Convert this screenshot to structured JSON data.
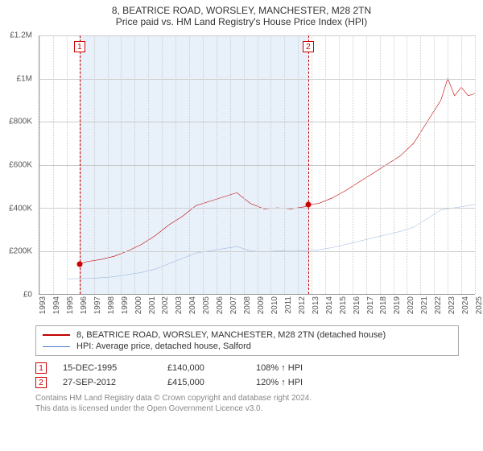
{
  "title": {
    "main": "8, BEATRICE ROAD, WORSLEY, MANCHESTER, M28 2TN",
    "sub": "Price paid vs. HM Land Registry's House Price Index (HPI)",
    "fontsize": 12
  },
  "chart": {
    "type": "line",
    "background_color": "#ffffff",
    "grid_color": "#cccccc",
    "highlight_color": "rgba(90,150,220,0.14)",
    "x": {
      "min": 1993,
      "max": 2025,
      "ticks": [
        1993,
        1994,
        1995,
        1996,
        1997,
        1998,
        1999,
        2000,
        2001,
        2002,
        2003,
        2004,
        2005,
        2006,
        2007,
        2008,
        2009,
        2010,
        2011,
        2012,
        2013,
        2014,
        2015,
        2016,
        2017,
        2018,
        2019,
        2020,
        2021,
        2022,
        2023,
        2024,
        2025
      ],
      "label_fontsize": 10
    },
    "y": {
      "min": 0,
      "max": 1200000,
      "ticks": [
        0,
        200000,
        400000,
        600000,
        800000,
        1000000,
        1200000
      ],
      "tick_labels": [
        "£0",
        "£200K",
        "£400K",
        "£600K",
        "£800K",
        "£1M",
        "£1.2M"
      ],
      "label_fontsize": 10
    },
    "highlight_range": {
      "from": 1995.95,
      "to": 2012.75
    },
    "series": [
      {
        "id": "property",
        "label": "8, BEATRICE ROAD, WORSLEY, MANCHESTER, M28 2TN (detached house)",
        "color": "#c40000",
        "width": 2,
        "points": [
          [
            1995.95,
            140000
          ],
          [
            1996.5,
            150000
          ],
          [
            1997.5,
            160000
          ],
          [
            1998.5,
            175000
          ],
          [
            1999.5,
            200000
          ],
          [
            2000.5,
            230000
          ],
          [
            2001.5,
            270000
          ],
          [
            2002.5,
            320000
          ],
          [
            2003.5,
            360000
          ],
          [
            2004.5,
            410000
          ],
          [
            2005.5,
            430000
          ],
          [
            2006.5,
            450000
          ],
          [
            2007.5,
            470000
          ],
          [
            2008.5,
            420000
          ],
          [
            2009.5,
            395000
          ],
          [
            2010.5,
            400000
          ],
          [
            2011.5,
            395000
          ],
          [
            2012.5,
            405000
          ],
          [
            2012.75,
            415000
          ],
          [
            2013.5,
            420000
          ],
          [
            2014.5,
            445000
          ],
          [
            2015.5,
            480000
          ],
          [
            2016.5,
            520000
          ],
          [
            2017.5,
            560000
          ],
          [
            2018.5,
            600000
          ],
          [
            2019.5,
            640000
          ],
          [
            2020.5,
            700000
          ],
          [
            2021.5,
            800000
          ],
          [
            2022.5,
            900000
          ],
          [
            2023.0,
            1000000
          ],
          [
            2023.5,
            920000
          ],
          [
            2024.0,
            960000
          ],
          [
            2024.5,
            920000
          ],
          [
            2025.0,
            930000
          ]
        ]
      },
      {
        "id": "hpi",
        "label": "HPI: Average price, detached house, Salford",
        "color": "#4a7ec8",
        "width": 1,
        "points": [
          [
            1995.0,
            70000
          ],
          [
            1996.5,
            72000
          ],
          [
            1997.5,
            75000
          ],
          [
            1998.5,
            80000
          ],
          [
            1999.5,
            90000
          ],
          [
            2000.5,
            100000
          ],
          [
            2001.5,
            115000
          ],
          [
            2002.5,
            140000
          ],
          [
            2003.5,
            165000
          ],
          [
            2004.5,
            190000
          ],
          [
            2005.5,
            200000
          ],
          [
            2006.5,
            210000
          ],
          [
            2007.5,
            220000
          ],
          [
            2008.5,
            200000
          ],
          [
            2009.5,
            195000
          ],
          [
            2010.5,
            200000
          ],
          [
            2011.5,
            198000
          ],
          [
            2012.5,
            200000
          ],
          [
            2013.5,
            205000
          ],
          [
            2014.5,
            215000
          ],
          [
            2015.5,
            230000
          ],
          [
            2016.5,
            245000
          ],
          [
            2017.5,
            260000
          ],
          [
            2018.5,
            275000
          ],
          [
            2019.5,
            290000
          ],
          [
            2020.5,
            310000
          ],
          [
            2021.5,
            350000
          ],
          [
            2022.5,
            390000
          ],
          [
            2023.5,
            400000
          ],
          [
            2024.5,
            410000
          ],
          [
            2025.0,
            415000
          ]
        ]
      }
    ],
    "markers": [
      {
        "n": "1",
        "year": 1995.95,
        "price": 140000
      },
      {
        "n": "2",
        "year": 2012.75,
        "price": 415000
      }
    ]
  },
  "legend": {
    "border_color": "#aaaaaa",
    "fontsize": 11
  },
  "sales": [
    {
      "n": "1",
      "date": "15-DEC-1995",
      "price": "£140,000",
      "hpi": "108% ↑ HPI"
    },
    {
      "n": "2",
      "date": "27-SEP-2012",
      "price": "£415,000",
      "hpi": "120% ↑ HPI"
    }
  ],
  "footer": {
    "line1": "Contains HM Land Registry data © Crown copyright and database right 2024.",
    "line2": "This data is licensed under the Open Government Licence v3.0.",
    "color": "#888888",
    "fontsize": 10
  }
}
